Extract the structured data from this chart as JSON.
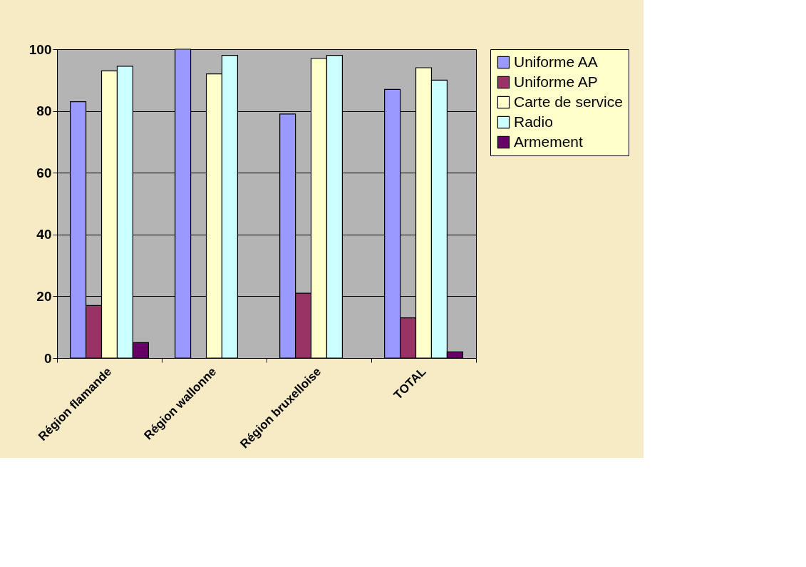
{
  "chart_data": {
    "type": "bar",
    "categories": [
      "Région flamande",
      "Région wallonne",
      "Région bruxelloise",
      "TOTAL"
    ],
    "series": [
      {
        "name": "Uniforme AA",
        "color": "#9999ff",
        "values": [
          83,
          100,
          79,
          87
        ]
      },
      {
        "name": "Uniforme AP",
        "color": "#993366",
        "values": [
          17,
          null,
          21,
          13
        ]
      },
      {
        "name": "Carte de service",
        "color": "#ffffcc",
        "values": [
          93,
          92,
          97,
          94
        ]
      },
      {
        "name": "Radio",
        "color": "#ccffff",
        "values": [
          94.5,
          98,
          98,
          90
        ]
      },
      {
        "name": "Armement",
        "color": "#660066",
        "values": [
          5,
          null,
          null,
          2
        ]
      }
    ],
    "ylim": [
      0,
      100
    ],
    "yticks": [
      0,
      20,
      40,
      60,
      80,
      100
    ],
    "grid": "y",
    "legend": "right"
  }
}
